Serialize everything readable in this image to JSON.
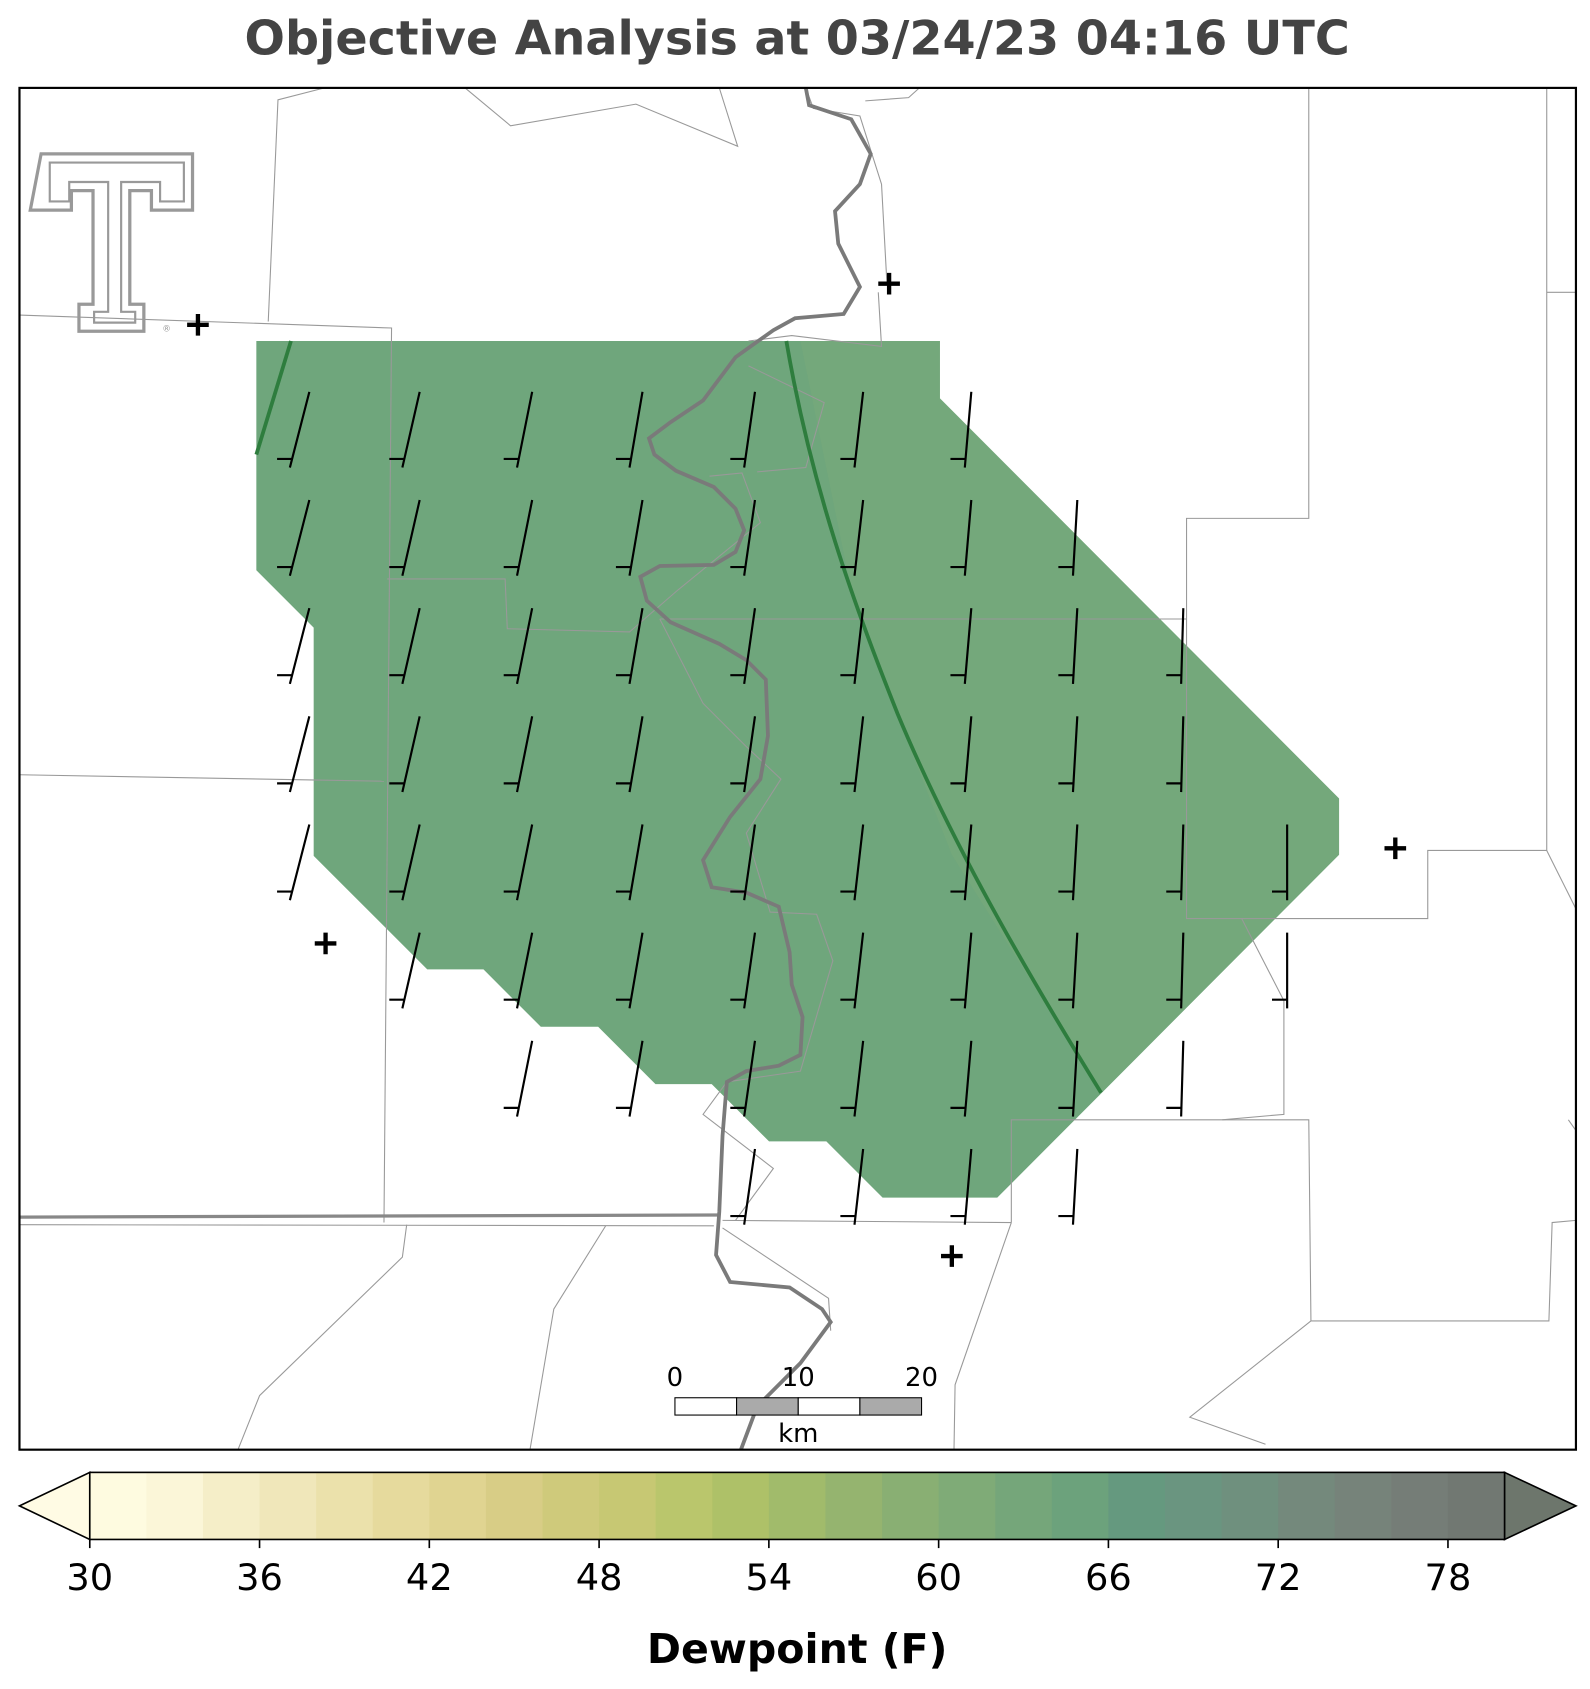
{
  "title": "Objective Analysis at 03/24/23 04:16 UTC",
  "colorbar": {
    "label": "Dewpoint (F)",
    "clim": [
      30,
      80
    ],
    "ticks": [
      30,
      36,
      42,
      48,
      54,
      60,
      66,
      72,
      78
    ],
    "colors": [
      "#fefbe0",
      "#fbf6d8",
      "#f5eec8",
      "#f0e7ba",
      "#ebe1ab",
      "#e6da9d",
      "#e0d491",
      "#d8cd86",
      "#cfca7b",
      "#c7c873",
      "#bac66c",
      "#aec168",
      "#a1bb6b",
      "#95b46f",
      "#89af73",
      "#7fab77",
      "#75a67a",
      "#6ca27c",
      "#65997f",
      "#6a9580",
      "#6f907e",
      "#74897c",
      "#76837a",
      "#757d77",
      "#717872"
    ],
    "under_color": "#fffbe4",
    "over_color": "#6d766c"
  },
  "scale_bar": {
    "ticks": [
      0,
      10,
      20
    ],
    "unit": "km"
  }
}
